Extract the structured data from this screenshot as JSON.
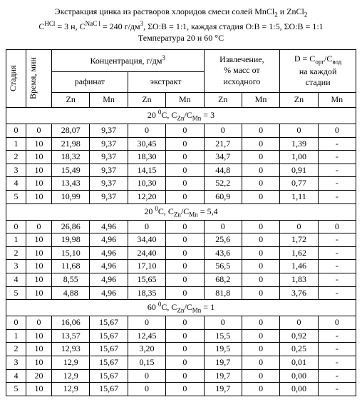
{
  "header": {
    "line1_a": "Экстракция цинка из растворов хлоридов смеси солей MnCl",
    "line1_sub1": "2",
    "line1_b": " и ZnCl",
    "line1_sub2": "2",
    "line2_a": "C",
    "line2_sup1": "HCl",
    "line2_b": " = 3 н, C",
    "line2_sup2": "NaC l",
    "line2_c": " = 240 г/дм",
    "line2_sup3": "3",
    "line2_d": ", ΣО:В = 1:1, каждая стадия О:В = 1:5, ΣО:В = 1:1",
    "line3": "Температура 20 и 60 °С"
  },
  "cols": {
    "stage": "Стадия",
    "time": "Время, мин",
    "conc_a": "Концентрация, г/дм",
    "conc_sup": "3",
    "rafinat": "рафинат",
    "extract": "экстракт",
    "extr_a": "Извлечение,",
    "extr_b": "% масс от",
    "extr_c": "исходного",
    "d_a": "D = C",
    "d_sub1": "орг",
    "d_b": "/C",
    "d_sub2": "вод",
    "d_c": "на каждой",
    "d_d": "стадии",
    "Zn": "Zn",
    "Mn": "Mn"
  },
  "sects": [
    {
      "pre": "20 ",
      "sup": "0",
      "aft": "C,  C",
      "sub1": "Zn",
      "mid": "/C",
      "sub2": "Mn",
      "eq": " = 3"
    },
    {
      "pre": "20 ",
      "sup": "0",
      "aft": "C,  C",
      "sub1": "Zn",
      "mid": "/C",
      "sub2": "Mn",
      "eq": " = 5,4"
    },
    {
      "pre": "60 ",
      "sup": "0",
      "aft": "C,  C",
      "sub1": "Zn",
      "mid": "/C",
      "sub2": "Mn",
      "eq": " = 1"
    }
  ],
  "data": {
    "s0": [
      [
        "0",
        "0",
        "28,07",
        "9,37",
        "0",
        "0",
        "0",
        "0",
        "0",
        "0"
      ],
      [
        "1",
        "10",
        "21,98",
        "9,37",
        "30,45",
        "0",
        "21,7",
        "0",
        "1,39",
        "-"
      ],
      [
        "2",
        "10",
        "18,32",
        "9,37",
        "18,30",
        "0",
        "34,7",
        "0",
        "1,00",
        "-"
      ],
      [
        "3",
        "10",
        "15,49",
        "9,37",
        "14,15",
        "0",
        "44,8",
        "0",
        "0,91",
        "-"
      ],
      [
        "4",
        "10",
        "13,43",
        "9,37",
        "10,30",
        "0",
        "52,2",
        "0",
        "0,77",
        "-"
      ],
      [
        "5",
        "10",
        "10,99",
        "9,37",
        "12,20",
        "0",
        "60,9",
        "0",
        "1,11",
        "-"
      ]
    ],
    "s1": [
      [
        "0",
        "0",
        "26,86",
        "4,96",
        "0",
        "0",
        "0",
        "0",
        "0",
        "0"
      ],
      [
        "1",
        "10",
        "19,98",
        "4,96",
        "34,40",
        "0",
        "25,6",
        "0",
        "1,72",
        "-"
      ],
      [
        "2",
        "10",
        "15,10",
        "4,96",
        "24,40",
        "0",
        "43,6",
        "0",
        "1,62",
        "-"
      ],
      [
        "3",
        "10",
        "11,68",
        "4,96",
        "17,10",
        "0",
        "56,5",
        "0",
        "1,46",
        "-"
      ],
      [
        "4",
        "10",
        "8,55",
        "4,96",
        "15,65",
        "0",
        "68,2",
        "0",
        "1,83",
        "-"
      ],
      [
        "5",
        "10",
        "4,88",
        "4,96",
        "18,35",
        "0",
        "81,8",
        "0",
        "3,76",
        "-"
      ]
    ],
    "s2": [
      [
        "0",
        "0",
        "16,06",
        "15,67",
        "0",
        "0",
        "0",
        "0",
        "0",
        "0"
      ],
      [
        "1",
        "10",
        "13,57",
        "15,67",
        "12,45",
        "0",
        "15,5",
        "0",
        "0,92",
        "-"
      ],
      [
        "2",
        "10",
        "12,93",
        "15,67",
        "3,20",
        "0",
        "19,5",
        "0",
        "0,25",
        "-"
      ],
      [
        "3",
        "10",
        "12,9",
        "15,67",
        "0,15",
        "0",
        "19,7",
        "0",
        "0,01",
        "-"
      ],
      [
        "4",
        "20",
        "12,9",
        "15,67",
        "0",
        "0",
        "19,7",
        "0",
        "0,00",
        "-"
      ],
      [
        "5",
        "10",
        "12,9",
        "15,67",
        "0",
        "0",
        "19,7",
        "0",
        "0,00",
        "-"
      ]
    ]
  }
}
